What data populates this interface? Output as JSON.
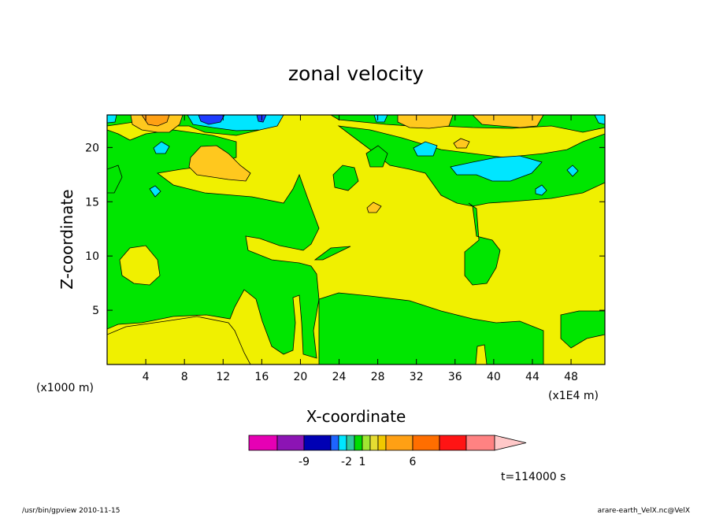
{
  "chart_data": {
    "type": "heatmap",
    "title": "zonal velocity",
    "xlabel": "X-coordinate",
    "ylabel": "Z-coordinate",
    "x_unit_left": "(x1000 m)",
    "x_unit_right": "(x1E4 m)",
    "xlim": [
      0,
      51.5
    ],
    "ylim": [
      0,
      23
    ],
    "x_ticks": [
      4,
      8,
      12,
      16,
      20,
      24,
      28,
      32,
      36,
      40,
      44,
      48
    ],
    "y_ticks": [
      5,
      10,
      15,
      20
    ],
    "time_label": "t=114000 s",
    "colorbar": {
      "colors": [
        "#e600b4",
        "#8c14b4",
        "#0000b4",
        "#1e64ff",
        "#00e6ff",
        "#32c8a0",
        "#00dc00",
        "#a0e632",
        "#e6dc32",
        "#f0c800",
        "#ffa014",
        "#ff6e00",
        "#ff1414",
        "#ff8282"
      ],
      "extend_color": "#ffc8c8",
      "tick_labels": [
        {
          "label": "-9",
          "after_box": 2
        },
        {
          "label": "-2",
          "after_box": 5
        },
        {
          "label": "1",
          "after_box": 7
        },
        {
          "label": "6",
          "after_box": 11
        }
      ]
    },
    "contour_regions": [
      {
        "level": "1 to 2",
        "color": "#f0f000",
        "description": "background field"
      },
      {
        "level": "0 to 1",
        "color": "#00e600",
        "description": "green patches"
      },
      {
        "level": "-1 to 0",
        "color": "#00e6ff",
        "description": "cyan patches near top"
      },
      {
        "level": "2 to 4",
        "color": "#ffc81e",
        "description": "orange patches near top"
      },
      {
        "level": "-3 to -2",
        "color": "#1e3cff",
        "description": "blue patch at top near x=10"
      }
    ]
  },
  "footer": {
    "left": "/usr/bin/gpview   2010-11-15",
    "right": "arare-earth_VelX.nc@VelX"
  }
}
